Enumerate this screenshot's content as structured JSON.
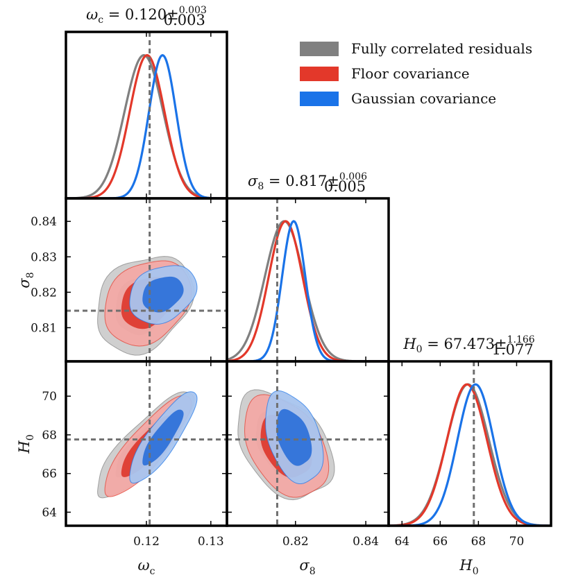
{
  "chart_data": {
    "type": "corner",
    "parameters": [
      "ω_c",
      "σ_8",
      "H_0"
    ],
    "axis_labels": {
      "omega_c": {
        "main": "ω",
        "sub": "c"
      },
      "sigma_8": {
        "main": "σ",
        "sub": "8"
      },
      "H_0": {
        "main": "H",
        "sub": "0"
      }
    },
    "ranges": {
      "omega_c": [
        0.1075,
        0.1325
      ],
      "sigma_8": [
        0.8005,
        0.8465
      ],
      "H_0": [
        63.3,
        71.8
      ]
    },
    "ticks": {
      "omega_c": {
        "values": [
          0.12,
          0.13
        ],
        "labels": [
          "0.12",
          "0.13"
        ]
      },
      "sigma_8_y": {
        "values": [
          0.81,
          0.82,
          0.83,
          0.84
        ],
        "labels": [
          "0.81",
          "0.82",
          "0.83",
          "0.84"
        ]
      },
      "sigma_8_x": {
        "values": [
          0.82,
          0.84
        ],
        "labels": [
          "0.82",
          "0.84"
        ]
      },
      "H_0_y": {
        "values": [
          64,
          66,
          68,
          70
        ],
        "labels": [
          "64",
          "66",
          "68",
          "70"
        ]
      },
      "H_0_x": {
        "values": [
          64,
          66,
          68,
          70
        ],
        "labels": [
          "64",
          "66",
          "68",
          "70"
        ]
      }
    },
    "truth": {
      "omega_c": 0.1205,
      "sigma_8": 0.8148,
      "H_0": 67.76
    },
    "titles": {
      "omega_c": {
        "name": "ω",
        "sub": "c",
        "value": " = 0.120±",
        "up": "0.003",
        "down": "0.003"
      },
      "sigma_8": {
        "name": "σ",
        "sub": "8",
        "value": " = 0.817±",
        "up": "0.006",
        "down": "0.005"
      },
      "H_0": {
        "name": "H",
        "sub": "0",
        "value": " = 67.473±",
        "up": "1.166",
        "down": "1.077"
      }
    },
    "legend": [
      {
        "label": "Fully correlated residuals",
        "color": "#808080"
      },
      {
        "label": "Floor covariance",
        "color": "#e3382a"
      },
      {
        "label": "Gaussian covariance",
        "color": "#1a73e8"
      }
    ],
    "series": [
      {
        "name": "Fully correlated residuals",
        "color": "#808080",
        "fill_outer": "#cccccc",
        "fill_inner": "#9e9e9e",
        "mean": {
          "omega_c": 0.1196,
          "sigma_8": 0.8168,
          "H_0": 67.45
        },
        "sd": {
          "omega_c": 0.003,
          "sigma_8": 0.0055,
          "H_0": 1.1
        },
        "corr": {
          "omega_c-sigma_8": 0.25,
          "omega_c-H_0": 0.85,
          "sigma_8-H_0": -0.38
        }
      },
      {
        "name": "Floor covariance",
        "color": "#e3382a",
        "fill_outer": "#f2a9a5",
        "fill_inner": "#dd3b30",
        "mean": {
          "omega_c": 0.1201,
          "sigma_8": 0.8172,
          "H_0": 67.4
        },
        "sd": {
          "omega_c": 0.0027,
          "sigma_8": 0.0048,
          "H_0": 1.05
        },
        "corr": {
          "omega_c-sigma_8": 0.25,
          "omega_c-H_0": 0.85,
          "sigma_8-H_0": -0.38
        }
      },
      {
        "name": "Gaussian covariance",
        "color": "#1a73e8",
        "fill_outer": "#a8c4ee",
        "fill_inner": "#2f72d9",
        "mean": {
          "omega_c": 0.1225,
          "sigma_8": 0.8195,
          "H_0": 67.85
        },
        "sd": {
          "omega_c": 0.0021,
          "sigma_8": 0.0033,
          "H_0": 0.95
        },
        "corr": {
          "omega_c-sigma_8": 0.25,
          "omega_c-H_0": 0.85,
          "sigma_8-H_0": -0.38
        }
      }
    ]
  }
}
